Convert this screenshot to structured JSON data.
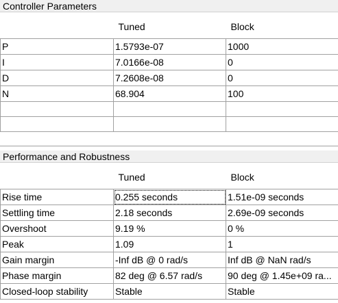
{
  "controller": {
    "title": "Controller Parameters",
    "columns": [
      "",
      "Tuned",
      "Block"
    ],
    "rows": [
      [
        "P",
        "1.5793e-07",
        "1000"
      ],
      [
        "I",
        "7.0166e-08",
        "0"
      ],
      [
        "D",
        "7.2608e-08",
        "0"
      ],
      [
        "N",
        "68.904",
        "100"
      ],
      [
        "",
        "",
        ""
      ],
      [
        "",
        "",
        ""
      ]
    ]
  },
  "performance": {
    "title": "Performance and Robustness",
    "columns": [
      "",
      "Tuned",
      "Block"
    ],
    "rows": [
      [
        "Rise time",
        "0.255 seconds",
        "1.51e-09 seconds"
      ],
      [
        "Settling time",
        "2.18 seconds",
        "2.69e-09 seconds"
      ],
      [
        "Overshoot",
        "9.19 %",
        "0 %"
      ],
      [
        "Peak",
        "1.09",
        "1"
      ],
      [
        "Gain margin",
        "-Inf dB @ 0 rad/s",
        "Inf dB @ NaN rad/s"
      ],
      [
        "Phase margin",
        "82 deg @ 6.57 rad/s",
        "90 deg @ 1.45e+09 ra..."
      ],
      [
        "Closed-loop stability",
        "Stable",
        "Stable"
      ]
    ]
  }
}
